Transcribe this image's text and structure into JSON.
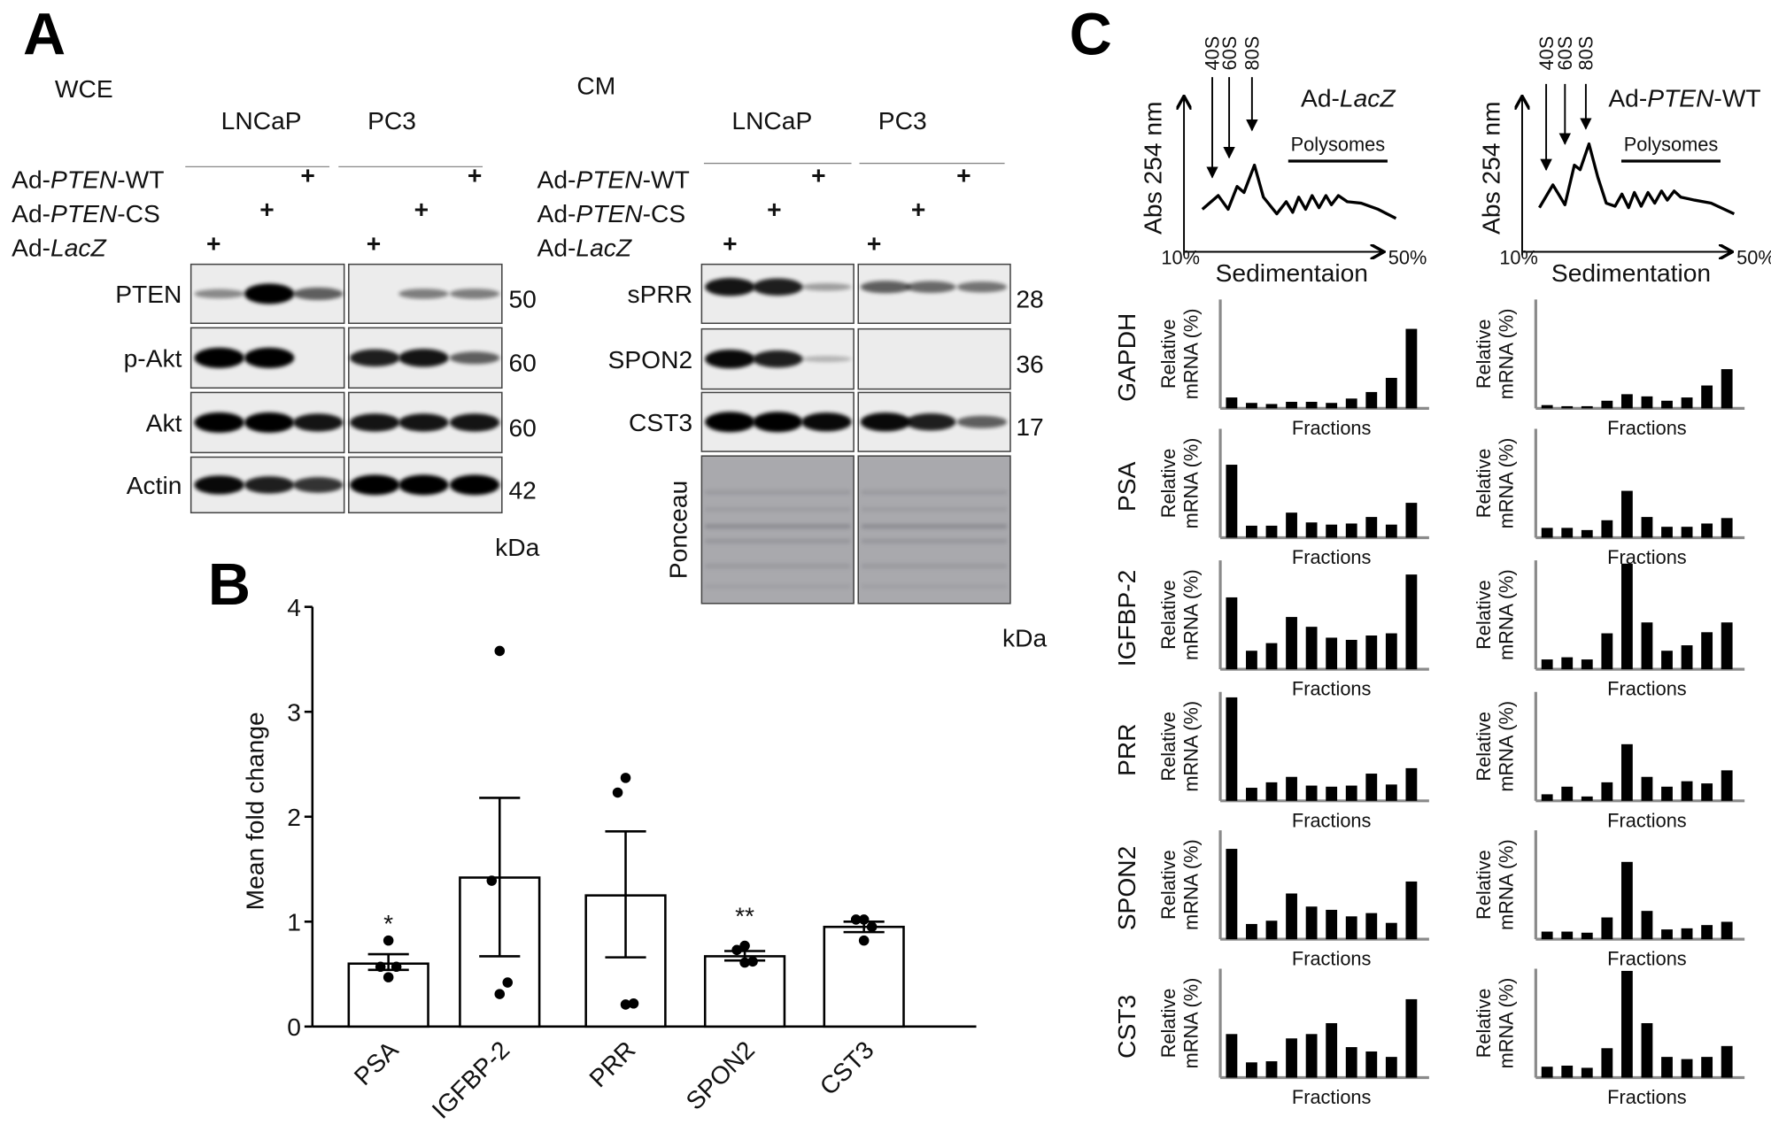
{
  "panels": {
    "A": "A",
    "B": "B",
    "C": "C"
  },
  "plus": "+",
  "kda_label": "kDa",
  "wce": {
    "title": "WCE",
    "cell_lines": [
      "LNCaP",
      "PC3"
    ],
    "treatments": [
      {
        "prefix": "Ad-",
        "gene": "PTEN",
        "suffix": "-WT",
        "lanes": [
          0,
          0,
          1,
          0,
          0,
          1
        ]
      },
      {
        "prefix": "Ad-",
        "gene": "PTEN",
        "suffix": "-CS",
        "lanes": [
          0,
          1,
          0,
          0,
          1,
          0
        ]
      },
      {
        "prefix": "Ad-",
        "gene": "LacZ",
        "suffix": "",
        "lanes": [
          1,
          0,
          0,
          1,
          0,
          0
        ]
      }
    ],
    "blots": [
      {
        "label": "PTEN",
        "kda": "50",
        "band_intensity": [
          0.3,
          1.0,
          0.5,
          0,
          0.35,
          0.35
        ]
      },
      {
        "label": "p-Akt",
        "kda": "60",
        "band_intensity": [
          1.0,
          1.0,
          0,
          0.8,
          0.85,
          0.5
        ]
      },
      {
        "label": "Akt",
        "kda": "60",
        "band_intensity": [
          1.0,
          1.0,
          0.85,
          0.85,
          0.85,
          0.85
        ]
      },
      {
        "label": "Actin",
        "kda": "42",
        "band_intensity": [
          0.9,
          0.8,
          0.7,
          1.0,
          1.0,
          1.0
        ]
      }
    ]
  },
  "cm": {
    "title": "CM",
    "cell_lines": [
      "LNCaP",
      "PC3"
    ],
    "treatments": [
      {
        "prefix": "Ad-",
        "gene": "PTEN",
        "suffix": "-WT",
        "lanes": [
          0,
          0,
          1,
          0,
          0,
          1
        ]
      },
      {
        "prefix": "Ad-",
        "gene": "PTEN",
        "suffix": "-CS",
        "lanes": [
          0,
          1,
          0,
          0,
          1,
          0
        ]
      },
      {
        "prefix": "Ad-",
        "gene": "LacZ",
        "suffix": "",
        "lanes": [
          1,
          0,
          0,
          1,
          0,
          0
        ]
      }
    ],
    "blots": [
      {
        "label": "sPRR",
        "kda": "28",
        "band_intensity": [
          0.85,
          0.8,
          0.2,
          0.5,
          0.45,
          0.4
        ]
      },
      {
        "label": "SPON2",
        "kda": "36",
        "band_intensity": [
          0.9,
          0.8,
          0.1,
          0,
          0,
          0
        ]
      },
      {
        "label": "CST3",
        "kda": "17",
        "band_intensity": [
          1.0,
          1.0,
          0.9,
          0.9,
          0.8,
          0.5
        ]
      }
    ],
    "stain_label": "Ponceau"
  },
  "chart_data": [
    {
      "panel": "B",
      "type": "bar",
      "ylabel": "Mean fold change",
      "ylim": [
        0,
        4
      ],
      "yticks": [
        "0",
        "1",
        "2",
        "3",
        "4"
      ],
      "categories": [
        "PSA",
        "IGFBP-2",
        "PRR",
        "SPON2",
        "CST3"
      ],
      "values": [
        0.6,
        1.42,
        1.25,
        0.67,
        0.95
      ],
      "error_upper": [
        0.69,
        2.18,
        1.86,
        0.72,
        1.0
      ],
      "error_lower": [
        0.54,
        0.67,
        0.66,
        0.63,
        0.9
      ],
      "points": [
        [
          0.82,
          0.57,
          0.57,
          0.47
        ],
        [
          3.58,
          1.39,
          0.42,
          0.31
        ],
        [
          2.37,
          2.23,
          0.22,
          0.21
        ],
        [
          0.77,
          0.73,
          0.62,
          0.61
        ],
        [
          1.02,
          1.02,
          0.95,
          0.82
        ]
      ],
      "significance": [
        "*",
        "",
        "",
        "**",
        ""
      ]
    },
    {
      "panel": "C",
      "type": "line",
      "title_prefix": "Ad-",
      "title_gene": "LacZ",
      "title_suffix": "",
      "ylabel": "Abs 254 nm",
      "xlabel": "Sedimentaion",
      "xstart": "10%",
      "xend": "50%",
      "peaks": [
        {
          "label": "40S",
          "x": 15.7,
          "y": 0.49
        },
        {
          "label": "60S",
          "x": 19.1,
          "y": 0.62
        },
        {
          "label": "80S",
          "x": 23.7,
          "y": 0.8
        }
      ],
      "polysome_label": "Polysomes",
      "polysome_range": [
        31,
        51
      ],
      "trace": [
        [
          13.7,
          0.28
        ],
        [
          16.9,
          0.37
        ],
        [
          18.9,
          0.28
        ],
        [
          20.7,
          0.43
        ],
        [
          22.1,
          0.39
        ],
        [
          24.2,
          0.57
        ],
        [
          26.0,
          0.36
        ],
        [
          28.7,
          0.25
        ],
        [
          30.6,
          0.33
        ],
        [
          31.9,
          0.26
        ],
        [
          33.1,
          0.36
        ],
        [
          34.5,
          0.28
        ],
        [
          35.8,
          0.37
        ],
        [
          37.2,
          0.29
        ],
        [
          38.6,
          0.37
        ],
        [
          39.7,
          0.31
        ],
        [
          41.1,
          0.37
        ],
        [
          42.9,
          0.33
        ],
        [
          45.7,
          0.32
        ],
        [
          49.1,
          0.28
        ],
        [
          52.7,
          0.22
        ]
      ]
    },
    {
      "panel": "C",
      "type": "line",
      "title_prefix": "Ad-",
      "title_gene": "PTEN",
      "title_suffix": "-WT",
      "ylabel": "Abs 254 nm",
      "xlabel": "Sedimentation",
      "xstart": "10%",
      "xend": "50%",
      "peaks": [
        {
          "label": "40S",
          "x": 14.6,
          "y": 0.54
        },
        {
          "label": "60S",
          "x": 18.2,
          "y": 0.71
        },
        {
          "label": "80S",
          "x": 22.2,
          "y": 0.81
        }
      ],
      "polysome_label": "Polysomes",
      "polysome_range": [
        29,
        48
      ],
      "trace": [
        [
          13.3,
          0.29
        ],
        [
          15.9,
          0.44
        ],
        [
          18.2,
          0.31
        ],
        [
          20.0,
          0.57
        ],
        [
          21.1,
          0.54
        ],
        [
          22.8,
          0.71
        ],
        [
          24.5,
          0.49
        ],
        [
          26.1,
          0.32
        ],
        [
          27.8,
          0.3
        ],
        [
          29.1,
          0.38
        ],
        [
          30.4,
          0.29
        ],
        [
          31.5,
          0.39
        ],
        [
          32.8,
          0.3
        ],
        [
          34.1,
          0.39
        ],
        [
          35.4,
          0.32
        ],
        [
          36.7,
          0.4
        ],
        [
          37.8,
          0.34
        ],
        [
          39.1,
          0.4
        ],
        [
          40.4,
          0.36
        ],
        [
          43.0,
          0.34
        ],
        [
          46.2,
          0.32
        ],
        [
          50.6,
          0.25
        ]
      ]
    },
    {
      "panel": "C",
      "type": "bar",
      "ylabel_line1": "Relative",
      "ylabel_line2": "mRNA (%)",
      "xlabel": "Fractions",
      "ylim": [
        0,
        100
      ],
      "genes": [
        "GAPDH",
        "PSA",
        "IGFBP-2",
        "PRR",
        "SPON2",
        "CST3"
      ],
      "conditions": [
        "Ad-LacZ",
        "Ad-PTEN-WT"
      ],
      "fractions": 10,
      "values": {
        "GAPDH": [
          [
            10,
            5,
            4,
            6,
            6,
            5,
            9,
            15,
            28,
            73
          ],
          [
            3,
            2,
            2,
            7,
            13,
            11,
            7,
            10,
            21,
            36
          ]
        ],
        "PSA": [
          [
            67,
            11,
            11,
            23,
            14,
            12,
            13,
            19,
            12,
            32
          ],
          [
            9,
            9,
            7,
            16,
            43,
            19,
            10,
            10,
            13,
            18
          ]
        ],
        "IGFBP-2": [
          [
            66,
            17,
            24,
            48,
            39,
            29,
            27,
            31,
            33,
            87
          ],
          [
            9,
            11,
            9,
            33,
            97,
            43,
            17,
            22,
            34,
            43
          ]
        ],
        "PRR": [
          [
            95,
            12,
            17,
            22,
            14,
            13,
            14,
            25,
            15,
            30
          ],
          [
            6,
            13,
            4,
            17,
            52,
            22,
            13,
            18,
            16,
            28
          ]
        ],
        "SPON2": [
          [
            83,
            14,
            17,
            42,
            30,
            27,
            21,
            24,
            15,
            53
          ],
          [
            7,
            7,
            6,
            20,
            71,
            26,
            9,
            10,
            13,
            16
          ]
        ],
        "CST3": [
          [
            40,
            14,
            15,
            36,
            40,
            50,
            28,
            24,
            19,
            72
          ],
          [
            10,
            11,
            9,
            27,
            98,
            50,
            19,
            17,
            19,
            29
          ]
        ]
      }
    }
  ]
}
